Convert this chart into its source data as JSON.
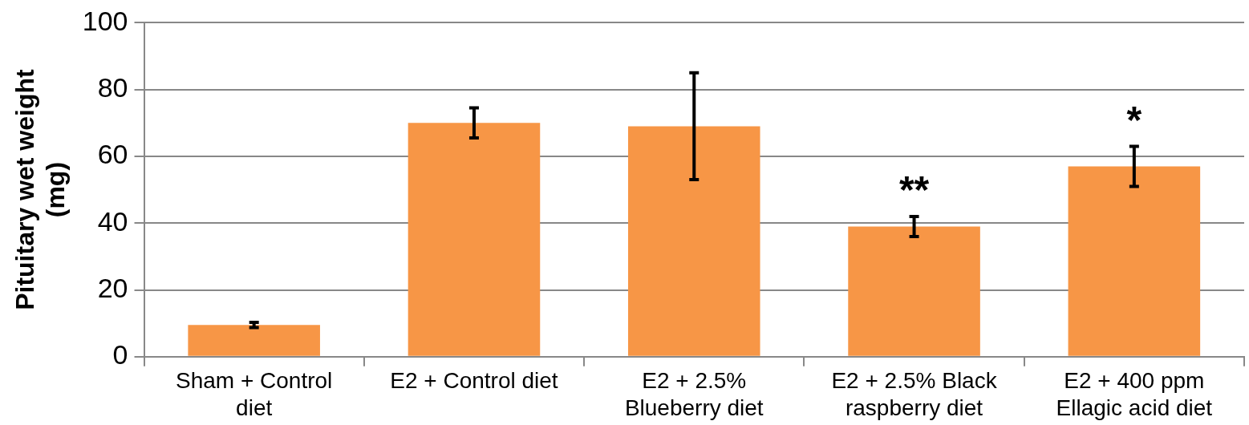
{
  "chart_data": {
    "type": "bar",
    "ylabel": "Pituitary wet weight (mg)",
    "categories": [
      "Sham + Control diet",
      "E2 + Control diet",
      "E2 + 2.5% Blueberry diet",
      "E2 + 2.5% Black raspberry diet",
      "E2 + 400 ppm Ellagic acid diet"
    ],
    "values": [
      9.5,
      70,
      69,
      39,
      57
    ],
    "errors": [
      0.8,
      4.5,
      16,
      3,
      6
    ],
    "color": "#f79646",
    "ylim": [
      0,
      100
    ],
    "yticks": [
      0,
      20,
      40,
      60,
      80,
      100
    ],
    "grid": "y",
    "legend": false,
    "annotations": [
      "**",
      "*"
    ]
  }
}
